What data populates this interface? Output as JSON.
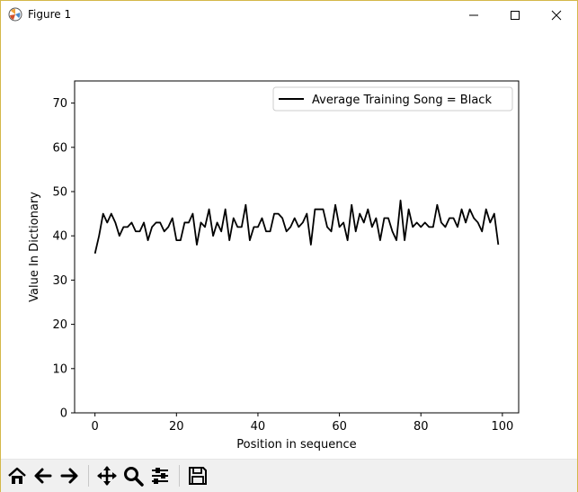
{
  "window": {
    "title": "Figure 1"
  },
  "chart_data": {
    "type": "line",
    "xlabel": "Position in sequence",
    "ylabel": "Value In Dictionary",
    "xlim": [
      -5,
      104
    ],
    "ylim": [
      0,
      75
    ],
    "xticks": [
      0,
      20,
      40,
      60,
      80,
      100
    ],
    "yticks": [
      0,
      10,
      20,
      30,
      40,
      50,
      60,
      70
    ],
    "grid": false,
    "legend_position": "top-right",
    "series": [
      {
        "name": "Average Training Song = Black",
        "color": "#000000",
        "x": [
          0,
          1,
          2,
          3,
          4,
          5,
          6,
          7,
          8,
          9,
          10,
          11,
          12,
          13,
          14,
          15,
          16,
          17,
          18,
          19,
          20,
          21,
          22,
          23,
          24,
          25,
          26,
          27,
          28,
          29,
          30,
          31,
          32,
          33,
          34,
          35,
          36,
          37,
          38,
          39,
          40,
          41,
          42,
          43,
          44,
          45,
          46,
          47,
          48,
          49,
          50,
          51,
          52,
          53,
          54,
          55,
          56,
          57,
          58,
          59,
          60,
          61,
          62,
          63,
          64,
          65,
          66,
          67,
          68,
          69,
          70,
          71,
          72,
          73,
          74,
          75,
          76,
          77,
          78,
          79,
          80,
          81,
          82,
          83,
          84,
          85,
          86,
          87,
          88,
          89,
          90,
          91,
          92,
          93,
          94,
          95,
          96,
          97,
          98,
          99
        ],
        "y": [
          36,
          40,
          45,
          43,
          45,
          43,
          40,
          42,
          42,
          43,
          41,
          41,
          43,
          39,
          42,
          43,
          43,
          41,
          42,
          44,
          39,
          39,
          43,
          43,
          45,
          38,
          43,
          42,
          46,
          40,
          43,
          41,
          46,
          39,
          44,
          42,
          42,
          47,
          39,
          42,
          42,
          44,
          41,
          41,
          45,
          45,
          44,
          41,
          42,
          44,
          42,
          43,
          45,
          38,
          46,
          46,
          46,
          42,
          41,
          47,
          42,
          43,
          39,
          47,
          41,
          45,
          43,
          46,
          42,
          44,
          39,
          44,
          44,
          41,
          39,
          48,
          39,
          46,
          42,
          43,
          42,
          43,
          42,
          42,
          47,
          43,
          42,
          44,
          44,
          42,
          46,
          43,
          46,
          44,
          43,
          41,
          46,
          43,
          45,
          38
        ]
      }
    ]
  },
  "toolbar": {
    "buttons": [
      "home-icon",
      "back-icon",
      "forward-icon",
      "pan-icon",
      "zoom-icon",
      "configure-icon",
      "save-icon"
    ]
  }
}
